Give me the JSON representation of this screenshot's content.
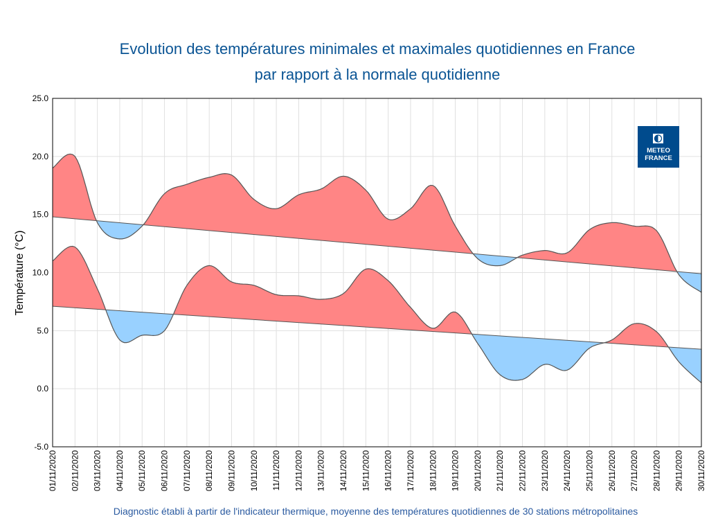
{
  "chart_data": {
    "type": "area",
    "title": "Evolution des températures minimales et maximales quotidiennes en France",
    "subtitle": "par rapport à la normale quotidienne",
    "ylabel": "Température (°C)",
    "xlabel": "",
    "footnote": "Diagnostic établi à partir de l'indicateur thermique, moyenne des températures quotidiennes de 30 stations métropolitaines",
    "logo": "METEO FRANCE",
    "ylim": [
      -5,
      25
    ],
    "yticks": [
      "-5.0",
      "0.0",
      "5.0",
      "10.0",
      "15.0",
      "20.0",
      "25.0"
    ],
    "grid": true,
    "categories": [
      "01/11/2020",
      "02/11/2020",
      "03/11/2020",
      "04/11/2020",
      "05/11/2020",
      "06/11/2020",
      "07/11/2020",
      "08/11/2020",
      "09/11/2020",
      "10/11/2020",
      "11/11/2020",
      "12/11/2020",
      "13/11/2020",
      "14/11/2020",
      "15/11/2020",
      "16/11/2020",
      "17/11/2020",
      "18/11/2020",
      "19/11/2020",
      "20/11/2020",
      "21/11/2020",
      "22/11/2020",
      "23/11/2020",
      "24/11/2020",
      "25/11/2020",
      "26/11/2020",
      "27/11/2020",
      "28/11/2020",
      "29/11/2020",
      "30/11/2020"
    ],
    "series": [
      {
        "values": [
          19.0,
          20.0,
          14.3,
          12.9,
          14.0,
          16.8,
          17.6,
          18.2,
          18.4,
          16.3,
          15.5,
          16.7,
          17.2,
          18.3,
          17.1,
          14.6,
          15.5,
          17.5,
          14.0,
          11.2,
          10.6,
          11.5,
          11.9,
          11.7,
          13.7,
          14.3,
          14.0,
          13.6,
          9.8,
          8.3
        ],
        "normal_start": 14.8,
        "normal_end": 9.9
      },
      {
        "values": [
          11.0,
          12.2,
          8.6,
          4.2,
          4.6,
          5.0,
          8.9,
          10.6,
          9.2,
          8.9,
          8.1,
          8.0,
          7.7,
          8.2,
          10.3,
          9.3,
          7.0,
          5.2,
          6.6,
          3.9,
          1.2,
          0.8,
          2.1,
          1.6,
          3.5,
          4.2,
          5.6,
          4.9,
          2.3,
          0.5
        ],
        "normal_start": 7.1,
        "normal_end": 3.4
      }
    ],
    "colors": {
      "above": "#ff8585",
      "below": "#99d1ff",
      "line": "#555555",
      "grid": "#e0e0e0",
      "title": "#0a5494",
      "logo": "#004b8d"
    }
  }
}
